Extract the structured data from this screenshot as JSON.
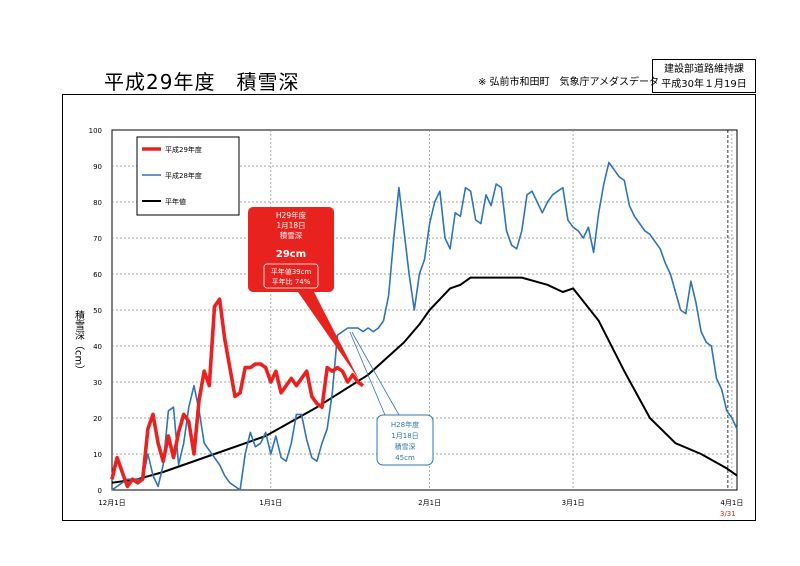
{
  "header": {
    "title": "平成29年度　積雪深",
    "source": "※ 弘前市和田町　気象庁アメダスデータ",
    "dept": "建設部道路維持課",
    "date": "平成30年１月19日"
  },
  "chart_data": {
    "type": "line",
    "title": "平成29年度　積雪深",
    "ylabel": "積雪深（cm）",
    "ylim": [
      0,
      100
    ],
    "yticks": [
      0,
      10,
      20,
      30,
      40,
      50,
      60,
      70,
      80,
      90,
      100
    ],
    "xlim": [
      0,
      122
    ],
    "xticks": [
      {
        "day": 0,
        "label": "12月1日"
      },
      {
        "day": 31,
        "label": "1月1日"
      },
      {
        "day": 62,
        "label": "2月1日"
      },
      {
        "day": 90,
        "label": "3月1日"
      },
      {
        "day": 121,
        "label": "4月1日"
      }
    ],
    "end_marker": {
      "day": 121,
      "label": "3/31"
    },
    "legend": {
      "position": "top-left"
    },
    "series": [
      {
        "name": "平成29年度",
        "color": "#e8231f",
        "x": [
          0,
          1,
          2,
          3,
          4,
          5,
          6,
          7,
          8,
          9,
          10,
          11,
          12,
          13,
          14,
          15,
          16,
          17,
          18,
          19,
          20,
          21,
          22,
          23,
          24,
          25,
          26,
          27,
          28,
          29,
          30,
          31,
          32,
          33,
          34,
          35,
          36,
          37,
          38,
          39,
          40,
          41,
          42,
          43,
          44,
          45,
          46,
          47,
          48,
          49
        ],
        "y": [
          3,
          9,
          5,
          1,
          3,
          2,
          3,
          17,
          21,
          13,
          8,
          15,
          9,
          16,
          21,
          19,
          10,
          25,
          33,
          29,
          51,
          53,
          42,
          34,
          26,
          27,
          34,
          34,
          35,
          35,
          34,
          30,
          33,
          27,
          29,
          31,
          29,
          31,
          33,
          26,
          24,
          23,
          34,
          33,
          34,
          33,
          30,
          32,
          30,
          29
        ]
      },
      {
        "name": "平成28年度",
        "color": "#2f74b5",
        "x": [
          0,
          1,
          2,
          3,
          4,
          5,
          6,
          7,
          8,
          9,
          10,
          11,
          12,
          13,
          14,
          15,
          16,
          17,
          18,
          19,
          20,
          21,
          22,
          23,
          24,
          25,
          26,
          27,
          28,
          29,
          30,
          31,
          32,
          33,
          34,
          35,
          36,
          37,
          38,
          39,
          40,
          41,
          42,
          43,
          44,
          45,
          46,
          47,
          48,
          49,
          50,
          51,
          52,
          53,
          54,
          55,
          56,
          57,
          58,
          59,
          60,
          61,
          62,
          63,
          64,
          65,
          66,
          67,
          68,
          69,
          70,
          71,
          72,
          73,
          74,
          75,
          76,
          77,
          78,
          79,
          80,
          81,
          82,
          83,
          84,
          85,
          86,
          87,
          88,
          89,
          90,
          91,
          92,
          93,
          94,
          95,
          96,
          97,
          98,
          99,
          100,
          101,
          102,
          103,
          104,
          105,
          106,
          107,
          108,
          109,
          110,
          111,
          112,
          113,
          114,
          115,
          116,
          117,
          118,
          119,
          120,
          121,
          122
        ],
        "y": [
          0,
          1,
          2,
          3,
          3,
          3,
          3,
          10,
          4,
          1,
          7,
          22,
          23,
          7,
          13,
          23,
          29,
          22,
          13,
          11,
          9,
          7,
          4,
          2,
          1,
          0,
          10,
          16,
          12,
          13,
          16,
          10,
          15,
          9,
          8,
          13,
          21,
          21,
          14,
          9,
          8,
          13,
          17,
          27,
          43,
          44,
          45,
          45,
          45,
          44,
          45,
          44,
          45,
          47,
          54,
          70,
          84,
          72,
          60,
          50,
          60,
          64,
          74,
          80,
          83,
          70,
          67,
          77,
          76,
          84,
          83,
          75,
          74,
          82,
          79,
          85,
          84,
          72,
          68,
          67,
          72,
          82,
          83,
          80,
          77,
          80,
          82,
          83,
          84,
          75,
          73,
          72,
          70,
          73,
          66,
          77,
          85,
          91,
          89,
          87,
          86,
          79,
          76,
          74,
          72,
          71,
          69,
          67,
          63,
          60,
          55,
          50,
          49,
          58,
          52,
          44,
          41,
          40,
          31,
          28,
          22,
          20,
          17
        ]
      },
      {
        "name": "平年値",
        "color": "#000000",
        "x": [
          0,
          5,
          10,
          20,
          30,
          40,
          50,
          57,
          60,
          62,
          64,
          66,
          68,
          70,
          75,
          80,
          85,
          88,
          90,
          95,
          100,
          105,
          110,
          115,
          120,
          122
        ],
        "y": [
          2,
          3,
          5,
          10,
          15,
          23,
          32,
          41,
          46,
          50,
          53,
          56,
          57,
          59,
          59,
          59,
          57,
          55,
          56,
          47,
          33,
          20,
          13,
          10,
          6,
          4
        ]
      }
    ],
    "annotations": [
      {
        "series": "平成29年度",
        "day": 49,
        "value": 29,
        "color": "#e8231f",
        "lines": [
          "H29年度",
          "1月18日",
          "積雪深",
          "29cm"
        ],
        "sublines": [
          "平年値39cm",
          "平年比 74%"
        ]
      },
      {
        "series": "平成28年度",
        "day": 48,
        "value": 45,
        "color": "#2f74b5",
        "lines": [
          "H28年度",
          "1月18日",
          "積雪深",
          "45cm"
        ]
      }
    ]
  }
}
